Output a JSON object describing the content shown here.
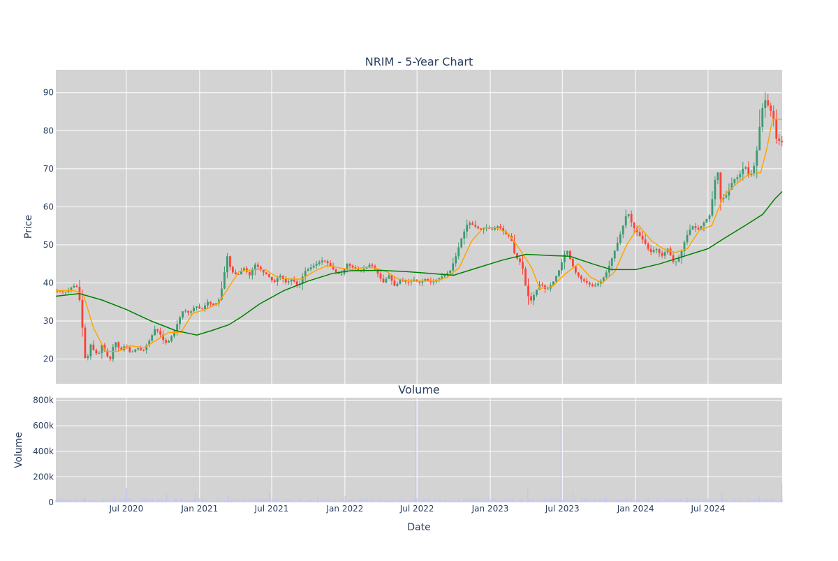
{
  "chart_data": [
    {
      "type": "candlestick",
      "title": "NRIM - 5-Year Chart",
      "ylabel": "Price",
      "xlabel": "",
      "ylim": [
        13.5,
        96
      ],
      "yticks": [
        20,
        30,
        40,
        50,
        60,
        70,
        80,
        90
      ],
      "grid": true,
      "legend": "none",
      "colors": {
        "up": "#3d9970",
        "down": "#ff4136",
        "ma_short": "#ffa500",
        "ma_long": "#008000",
        "plot_bg": "#d3d3d3",
        "grid": "#ffffff"
      },
      "x_range": [
        "2020-01-06",
        "2025-01-03"
      ],
      "close_path": [
        [
          "2020-01-06",
          38
        ],
        [
          "2020-02-01",
          37.5
        ],
        [
          "2020-02-20",
          39
        ],
        [
          "2020-03-01",
          39.5
        ],
        [
          "2020-03-10",
          35
        ],
        [
          "2020-03-18",
          26
        ],
        [
          "2020-03-25",
          18
        ],
        [
          "2020-04-05",
          24
        ],
        [
          "2020-04-15",
          22
        ],
        [
          "2020-04-25",
          21
        ],
        [
          "2020-05-05",
          24
        ],
        [
          "2020-05-15",
          21
        ],
        [
          "2020-05-25",
          20
        ],
        [
          "2020-06-05",
          25
        ],
        [
          "2020-06-15",
          23
        ],
        [
          "2020-06-25",
          22
        ],
        [
          "2020-07-01",
          24
        ],
        [
          "2020-07-15",
          21.5
        ],
        [
          "2020-08-01",
          23
        ],
        [
          "2020-08-15",
          22
        ],
        [
          "2020-09-01",
          25
        ],
        [
          "2020-09-15",
          28
        ],
        [
          "2020-09-25",
          27
        ],
        [
          "2020-10-05",
          25
        ],
        [
          "2020-10-15",
          24
        ],
        [
          "2020-11-01",
          27
        ],
        [
          "2020-11-12",
          30
        ],
        [
          "2020-11-25",
          33
        ],
        [
          "2020-12-10",
          32
        ],
        [
          "2020-12-25",
          34
        ],
        [
          "2021-01-10",
          33
        ],
        [
          "2021-01-25",
          35
        ],
        [
          "2021-02-10",
          34
        ],
        [
          "2021-02-25",
          36
        ],
        [
          "2021-03-05",
          41
        ],
        [
          "2021-03-15",
          47
        ],
        [
          "2021-03-25",
          43
        ],
        [
          "2021-04-10",
          42
        ],
        [
          "2021-04-25",
          44
        ],
        [
          "2021-05-10",
          42
        ],
        [
          "2021-05-25",
          45
        ],
        [
          "2021-06-10",
          43
        ],
        [
          "2021-06-25",
          42
        ],
        [
          "2021-07-10",
          40
        ],
        [
          "2021-07-25",
          42
        ],
        [
          "2021-08-10",
          40
        ],
        [
          "2021-08-25",
          41
        ],
        [
          "2021-09-10",
          39
        ],
        [
          "2021-09-25",
          43
        ],
        [
          "2021-10-10",
          44
        ],
        [
          "2021-10-25",
          45
        ],
        [
          "2021-11-10",
          46
        ],
        [
          "2021-11-25",
          45
        ],
        [
          "2021-12-10",
          43
        ],
        [
          "2021-12-25",
          42
        ],
        [
          "2022-01-10",
          45
        ],
        [
          "2022-01-25",
          44
        ],
        [
          "2022-02-10",
          43
        ],
        [
          "2022-02-25",
          44
        ],
        [
          "2022-03-10",
          45
        ],
        [
          "2022-03-25",
          43
        ],
        [
          "2022-04-10",
          40
        ],
        [
          "2022-04-25",
          42
        ],
        [
          "2022-05-10",
          39
        ],
        [
          "2022-05-25",
          41
        ],
        [
          "2022-06-10",
          40
        ],
        [
          "2022-06-25",
          41
        ],
        [
          "2022-07-10",
          40
        ],
        [
          "2022-07-25",
          41
        ],
        [
          "2022-08-10",
          40
        ],
        [
          "2022-08-25",
          41
        ],
        [
          "2022-09-10",
          42
        ],
        [
          "2022-09-25",
          43
        ],
        [
          "2022-10-10",
          47
        ],
        [
          "2022-10-25",
          52
        ],
        [
          "2022-11-10",
          56
        ],
        [
          "2022-11-25",
          55
        ],
        [
          "2022-12-10",
          54
        ],
        [
          "2022-12-25",
          54.5
        ],
        [
          "2023-01-10",
          54
        ],
        [
          "2023-01-25",
          55
        ],
        [
          "2023-02-10",
          53
        ],
        [
          "2023-02-25",
          52
        ],
        [
          "2023-03-05",
          48
        ],
        [
          "2023-03-15",
          46
        ],
        [
          "2023-03-25",
          45
        ],
        [
          "2023-04-05",
          38
        ],
        [
          "2023-04-15",
          35
        ],
        [
          "2023-04-25",
          37
        ],
        [
          "2023-05-10",
          40
        ],
        [
          "2023-05-25",
          38
        ],
        [
          "2023-06-10",
          40
        ],
        [
          "2023-06-25",
          43
        ],
        [
          "2023-07-05",
          46
        ],
        [
          "2023-07-15",
          49
        ],
        [
          "2023-07-25",
          46
        ],
        [
          "2023-08-05",
          43
        ],
        [
          "2023-08-20",
          41
        ],
        [
          "2023-09-05",
          40
        ],
        [
          "2023-09-20",
          39
        ],
        [
          "2023-10-05",
          40
        ],
        [
          "2023-10-20",
          42
        ],
        [
          "2023-11-01",
          45
        ],
        [
          "2023-11-15",
          49
        ],
        [
          "2023-12-01",
          54
        ],
        [
          "2023-12-15",
          59
        ],
        [
          "2023-12-28",
          55
        ],
        [
          "2024-01-10",
          53
        ],
        [
          "2024-01-25",
          51
        ],
        [
          "2024-02-10",
          48
        ],
        [
          "2024-02-25",
          49
        ],
        [
          "2024-03-10",
          47
        ],
        [
          "2024-03-25",
          49
        ],
        [
          "2024-04-10",
          45
        ],
        [
          "2024-04-25",
          47
        ],
        [
          "2024-05-10",
          52
        ],
        [
          "2024-05-25",
          55
        ],
        [
          "2024-06-10",
          54
        ],
        [
          "2024-06-25",
          56
        ],
        [
          "2024-07-10",
          58
        ],
        [
          "2024-07-20",
          66
        ],
        [
          "2024-07-28",
          70
        ],
        [
          "2024-08-05",
          62
        ],
        [
          "2024-08-20",
          63
        ],
        [
          "2024-09-05",
          67
        ],
        [
          "2024-09-20",
          68
        ],
        [
          "2024-10-05",
          71
        ],
        [
          "2024-10-15",
          68
        ],
        [
          "2024-10-25",
          69
        ],
        [
          "2024-11-06",
          76
        ],
        [
          "2024-11-15",
          85
        ],
        [
          "2024-11-25",
          88
        ],
        [
          "2024-12-05",
          86
        ],
        [
          "2024-12-15",
          84
        ],
        [
          "2024-12-22",
          78
        ],
        [
          "2025-01-03",
          77
        ]
      ],
      "ma_short_path": [
        [
          "2020-01-06",
          38
        ],
        [
          "2020-02-20",
          38
        ],
        [
          "2020-03-15",
          37
        ],
        [
          "2020-04-10",
          28
        ],
        [
          "2020-05-10",
          22
        ],
        [
          "2020-06-10",
          22
        ],
        [
          "2020-07-10",
          23.5
        ],
        [
          "2020-08-15",
          23
        ],
        [
          "2020-09-15",
          25
        ],
        [
          "2020-10-15",
          27
        ],
        [
          "2020-11-15",
          27
        ],
        [
          "2020-12-15",
          32
        ],
        [
          "2021-01-15",
          33
        ],
        [
          "2021-02-15",
          34.5
        ],
        [
          "2021-03-10",
          38
        ],
        [
          "2021-04-10",
          43
        ],
        [
          "2021-05-15",
          43.5
        ],
        [
          "2021-06-15",
          43.5
        ],
        [
          "2021-07-15",
          41.5
        ],
        [
          "2021-08-15",
          41
        ],
        [
          "2021-09-15",
          41
        ],
        [
          "2021-10-15",
          43
        ],
        [
          "2021-11-15",
          44.5
        ],
        [
          "2021-12-15",
          44
        ],
        [
          "2022-01-15",
          43.5
        ],
        [
          "2022-02-15",
          44
        ],
        [
          "2022-03-15",
          44
        ],
        [
          "2022-04-15",
          43
        ],
        [
          "2022-05-15",
          41
        ],
        [
          "2022-06-15",
          40.5
        ],
        [
          "2022-07-15",
          40.5
        ],
        [
          "2022-08-15",
          40.5
        ],
        [
          "2022-09-15",
          41.5
        ],
        [
          "2022-10-15",
          44
        ],
        [
          "2022-11-15",
          51
        ],
        [
          "2022-12-15",
          54.5
        ],
        [
          "2023-01-15",
          54.5
        ],
        [
          "2023-02-15",
          53
        ],
        [
          "2023-03-15",
          49
        ],
        [
          "2023-04-15",
          44
        ],
        [
          "2023-05-05",
          38.5
        ],
        [
          "2023-06-05",
          39
        ],
        [
          "2023-07-10",
          42.5
        ],
        [
          "2023-08-10",
          45
        ],
        [
          "2023-09-10",
          41.5
        ],
        [
          "2023-10-10",
          40
        ],
        [
          "2023-11-10",
          43
        ],
        [
          "2023-12-10",
          50
        ],
        [
          "2024-01-10",
          55
        ],
        [
          "2024-02-10",
          51
        ],
        [
          "2024-03-10",
          49
        ],
        [
          "2024-04-10",
          48
        ],
        [
          "2024-05-10",
          49
        ],
        [
          "2024-06-10",
          54
        ],
        [
          "2024-07-10",
          55
        ],
        [
          "2024-08-10",
          63
        ],
        [
          "2024-09-10",
          66
        ],
        [
          "2024-10-10",
          68.5
        ],
        [
          "2024-11-10",
          69
        ],
        [
          "2024-11-25",
          75
        ],
        [
          "2024-12-10",
          83
        ],
        [
          "2025-01-03",
          83
        ]
      ],
      "ma_long_path": [
        [
          "2020-01-06",
          36.5
        ],
        [
          "2020-03-05",
          37.2
        ],
        [
          "2020-05-01",
          35.5
        ],
        [
          "2020-07-01",
          33
        ],
        [
          "2020-09-01",
          30
        ],
        [
          "2020-11-01",
          27.5
        ],
        [
          "2020-12-25",
          26.3
        ],
        [
          "2021-02-01",
          27.5
        ],
        [
          "2021-03-15",
          29
        ],
        [
          "2021-04-15",
          31
        ],
        [
          "2021-06-01",
          34.5
        ],
        [
          "2021-08-01",
          38
        ],
        [
          "2021-10-01",
          40.5
        ],
        [
          "2021-12-01",
          42.5
        ],
        [
          "2022-01-15",
          43.2
        ],
        [
          "2022-04-01",
          43.3
        ],
        [
          "2022-06-01",
          43
        ],
        [
          "2022-08-01",
          42.5
        ],
        [
          "2022-10-01",
          42
        ],
        [
          "2022-12-01",
          44
        ],
        [
          "2023-02-01",
          46
        ],
        [
          "2023-04-01",
          47.5
        ],
        [
          "2023-06-01",
          47.2
        ],
        [
          "2023-07-20",
          47
        ],
        [
          "2023-09-15",
          45
        ],
        [
          "2023-11-01",
          43.5
        ],
        [
          "2024-01-01",
          43.5
        ],
        [
          "2024-03-01",
          45
        ],
        [
          "2024-05-01",
          47
        ],
        [
          "2024-07-01",
          49
        ],
        [
          "2024-08-15",
          52
        ],
        [
          "2024-10-01",
          55
        ],
        [
          "2024-11-15",
          58
        ],
        [
          "2024-12-15",
          62
        ],
        [
          "2025-01-03",
          64
        ]
      ]
    },
    {
      "type": "bar",
      "title": "Volume",
      "ylabel": "Volume",
      "xlabel": "Date",
      "ylim": [
        0,
        820000
      ],
      "yticks": [
        0,
        200000,
        400000,
        600000,
        800000
      ],
      "ytick_labels": [
        "0",
        "200k",
        "400k",
        "600k",
        "800k"
      ],
      "x_range": [
        "2020-01-06",
        "2025-01-03"
      ],
      "xticks": [
        "2020-07-01",
        "2021-01-01",
        "2021-07-01",
        "2022-01-01",
        "2022-07-01",
        "2023-01-01",
        "2023-07-01",
        "2024-01-01",
        "2024-07-01"
      ],
      "xtick_labels": [
        "Jul 2020",
        "Jan 2021",
        "Jul 2021",
        "Jan 2022",
        "Jul 2022",
        "Jan 2023",
        "Jul 2023",
        "Jan 2024",
        "Jul 2024"
      ],
      "grid": true,
      "colors": {
        "bar": "#c6c6f0",
        "plot_bg": "#d3d3d3",
        "grid": "#ffffff"
      },
      "baseline_volume": 22000,
      "spikes": [
        [
          "2020-03-20",
          45000
        ],
        [
          "2020-06-02",
          60000
        ],
        [
          "2020-07-01",
          110000
        ],
        [
          "2020-10-10",
          70000
        ],
        [
          "2020-12-22",
          80000
        ],
        [
          "2021-03-15",
          60000
        ],
        [
          "2021-06-25",
          85000
        ],
        [
          "2021-10-25",
          55000
        ],
        [
          "2022-01-02",
          50000
        ],
        [
          "2022-06-28",
          790000
        ],
        [
          "2022-12-28",
          45000
        ],
        [
          "2023-04-05",
          120000
        ],
        [
          "2023-06-28",
          600000
        ],
        [
          "2023-07-28",
          80000
        ],
        [
          "2023-10-15",
          40000
        ],
        [
          "2024-05-10",
          45000
        ],
        [
          "2024-08-05",
          80000
        ],
        [
          "2024-11-06",
          60000
        ],
        [
          "2025-01-02",
          150000
        ]
      ]
    }
  ]
}
